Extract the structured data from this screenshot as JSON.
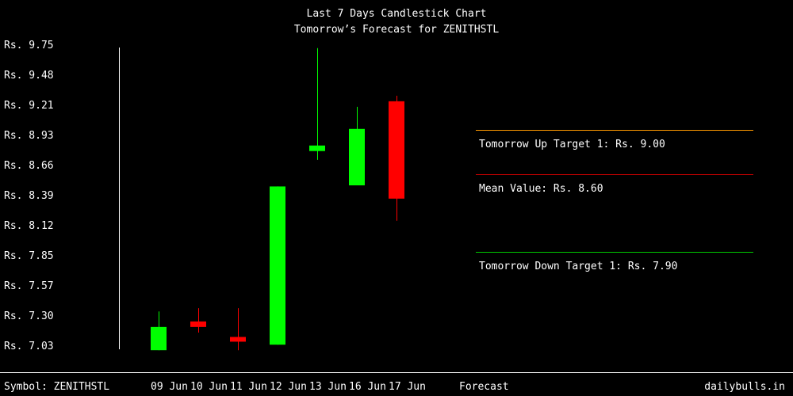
{
  "header": {
    "title": "Last 7 Days Candlestick Chart",
    "subtitle": "Tomorrow’s Forecast for ZENITHSTL"
  },
  "footer": {
    "symbol_label": "Symbol: ZENITHSTL",
    "forecast_label": "Forecast",
    "brand": "dailybulls.in"
  },
  "colors": {
    "background": "#000000",
    "bullish": "#00ff00",
    "bearish": "#ff0000",
    "up_target_line": "#ff9900",
    "mean_line": "#cc0000",
    "down_target_line": "#00cc00",
    "axis": "#ffffff"
  },
  "chart_data": {
    "type": "candlestick",
    "title": "Last 7 Days Candlestick Chart",
    "subtitle": "Tomorrow’s Forecast for ZENITHSTL",
    "symbol": "ZENITHSTL",
    "currency_prefix": "Rs.",
    "ylim": [
      7.03,
      9.75
    ],
    "yticks": [
      "Rs. 9.75",
      "Rs. 9.48",
      "Rs. 9.21",
      "Rs. 8.93",
      "Rs. 8.66",
      "Rs. 8.39",
      "Rs. 8.12",
      "Rs. 7.85",
      "Rs. 7.57",
      "Rs. 7.30",
      "Rs. 7.03"
    ],
    "categories": [
      "09 Jun",
      "10 Jun",
      "11 Jun",
      "12 Jun",
      "13 Jun",
      "16 Jun",
      "17 Jun"
    ],
    "candles": [
      {
        "date": "09 Jun",
        "open": 7.0,
        "high": 7.35,
        "low": 7.0,
        "close": 7.21,
        "direction": "up"
      },
      {
        "date": "10 Jun",
        "open": 7.26,
        "high": 7.38,
        "low": 7.16,
        "close": 7.21,
        "direction": "down"
      },
      {
        "date": "11 Jun",
        "open": 7.12,
        "high": 7.38,
        "low": 7.0,
        "close": 7.08,
        "direction": "down"
      },
      {
        "date": "12 Jun",
        "open": 7.05,
        "high": 8.48,
        "low": 7.05,
        "close": 8.48,
        "direction": "up"
      },
      {
        "date": "13 Jun",
        "open": 8.8,
        "high": 9.73,
        "low": 8.72,
        "close": 8.85,
        "direction": "up"
      },
      {
        "date": "16 Jun",
        "open": 8.49,
        "high": 9.2,
        "low": 8.49,
        "close": 9.0,
        "direction": "up"
      },
      {
        "date": "17 Jun",
        "open": 9.25,
        "high": 9.3,
        "low": 8.17,
        "close": 8.37,
        "direction": "down"
      }
    ],
    "forecast": {
      "label": "Forecast",
      "targets": [
        {
          "name": "Tomorrow Up Target 1",
          "value": 9.0,
          "text": "Tomorrow Up Target 1: Rs. 9.00",
          "color": "#ff9900"
        },
        {
          "name": "Mean Value",
          "value": 8.6,
          "text": "Mean Value: Rs. 8.60",
          "color": "#cc0000"
        },
        {
          "name": "Tomorrow Down Target 1",
          "value": 7.9,
          "text": "Tomorrow Down Target 1: Rs. 7.90",
          "color": "#00cc00"
        }
      ]
    },
    "grid": false,
    "legend": "none"
  }
}
